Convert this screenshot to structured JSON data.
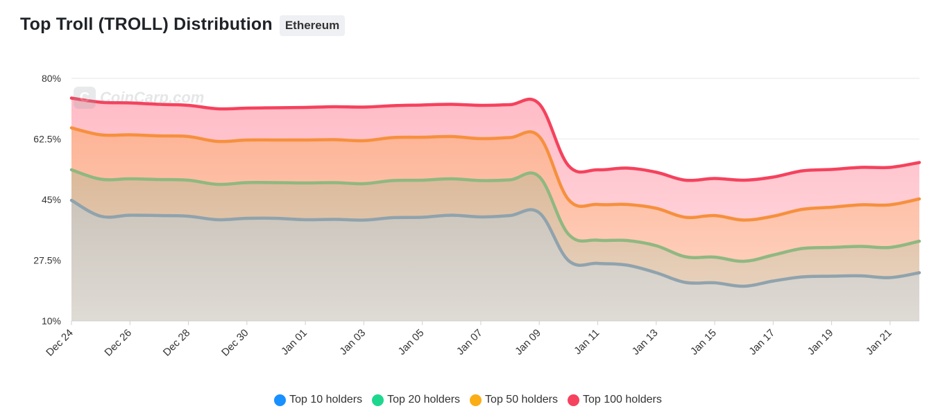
{
  "header": {
    "title": "Top Troll (TROLL) Distribution",
    "network_badge": "Ethereum"
  },
  "watermark": {
    "text": "CoinCarp.com",
    "logo_glyph": "C"
  },
  "chart_data": {
    "type": "area",
    "y_ticks": [
      "10%",
      "27.5%",
      "45%",
      "62.5%",
      "80%"
    ],
    "y_tick_values": [
      10,
      27.5,
      45,
      62.5,
      80
    ],
    "ylim": [
      10,
      80
    ],
    "x_tick_labels": [
      "Dec 24",
      "Dec 26",
      "Dec 28",
      "Dec 30",
      "Jan 01",
      "Jan 03",
      "Jan 05",
      "Jan 07",
      "Jan 09",
      "Jan 11",
      "Jan 13",
      "Jan 15",
      "Jan 17",
      "Jan 19",
      "Jan 21"
    ],
    "x": [
      "Dec 24",
      "Dec 25",
      "Dec 26",
      "Dec 27",
      "Dec 28",
      "Dec 29",
      "Dec 30",
      "Dec 31",
      "Jan 01",
      "Jan 02",
      "Jan 03",
      "Jan 04",
      "Jan 05",
      "Jan 06",
      "Jan 07",
      "Jan 08",
      "Jan 09",
      "Jan 10",
      "Jan 11",
      "Jan 12",
      "Jan 13",
      "Jan 14",
      "Jan 15",
      "Jan 16",
      "Jan 17",
      "Jan 18",
      "Jan 19",
      "Jan 20",
      "Jan 21",
      "Jan 22"
    ],
    "grid": true,
    "legend_position": "bottom-center",
    "series": [
      {
        "name": "Top 10 holders",
        "color": "#1890ff",
        "line_color": "#8fa3ad",
        "fill_color": "#b7aea1",
        "values": [
          44.8,
          40.2,
          40.5,
          40.4,
          40.2,
          39.2,
          39.6,
          39.6,
          39.2,
          39.3,
          39.1,
          39.8,
          39.9,
          40.5,
          40.0,
          40.4,
          41.2,
          27.4,
          26.6,
          26.1,
          23.9,
          21.1,
          21.0,
          20.0,
          21.5,
          22.7,
          22.9,
          23.0,
          22.5,
          23.9
        ]
      },
      {
        "name": "Top 20 holders",
        "color": "#1ed78f",
        "line_color": "#8fb881",
        "fill_color": "#d2a77f",
        "values": [
          53.6,
          50.9,
          51.0,
          50.8,
          50.6,
          49.4,
          49.9,
          49.9,
          49.8,
          49.9,
          49.6,
          50.5,
          50.6,
          51.0,
          50.5,
          50.7,
          51.6,
          35.0,
          33.3,
          33.2,
          31.7,
          28.5,
          28.4,
          27.2,
          29.0,
          30.9,
          31.2,
          31.5,
          31.2,
          33.0
        ]
      },
      {
        "name": "Top 50 holders",
        "color": "#faad14",
        "line_color": "#f6903d",
        "fill_color": "#fdaa88",
        "values": [
          65.7,
          63.7,
          63.7,
          63.4,
          63.2,
          61.8,
          62.2,
          62.2,
          62.2,
          62.3,
          62.0,
          62.9,
          63.0,
          63.2,
          62.6,
          62.9,
          63.2,
          45.0,
          43.6,
          43.6,
          42.5,
          39.9,
          40.4,
          39.1,
          40.2,
          42.2,
          42.8,
          43.5,
          43.5,
          45.2
        ]
      },
      {
        "name": "Top 100 holders",
        "color": "#f5425d",
        "line_color": "#f5425d",
        "fill_color": "#ffb9c4",
        "values": [
          74.3,
          73.1,
          72.9,
          72.5,
          72.2,
          71.2,
          71.4,
          71.5,
          71.6,
          71.8,
          71.7,
          72.1,
          72.3,
          72.5,
          72.2,
          72.4,
          72.6,
          54.8,
          53.6,
          54.1,
          52.9,
          50.6,
          51.1,
          50.6,
          51.5,
          53.3,
          53.7,
          54.3,
          54.3,
          55.7
        ]
      }
    ]
  }
}
